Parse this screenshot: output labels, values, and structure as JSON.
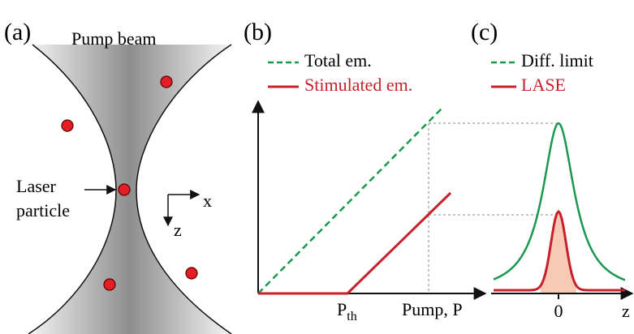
{
  "panel_a": {
    "label": "(a)",
    "beam": "Pump beam",
    "particle": [
      "Laser",
      "particle"
    ],
    "axis_x": "x",
    "axis_z": "z"
  },
  "panel_b": {
    "label": "(b)",
    "legend": [
      "Total em.",
      "Stimulated em."
    ],
    "threshold": "P",
    "threshold_sub": "th",
    "x_label": "Pump, P"
  },
  "panel_c": {
    "label": "(c)",
    "legend": [
      "Diff. limit",
      "LASE"
    ],
    "x_tick": "0",
    "x_label": "z"
  }
}
